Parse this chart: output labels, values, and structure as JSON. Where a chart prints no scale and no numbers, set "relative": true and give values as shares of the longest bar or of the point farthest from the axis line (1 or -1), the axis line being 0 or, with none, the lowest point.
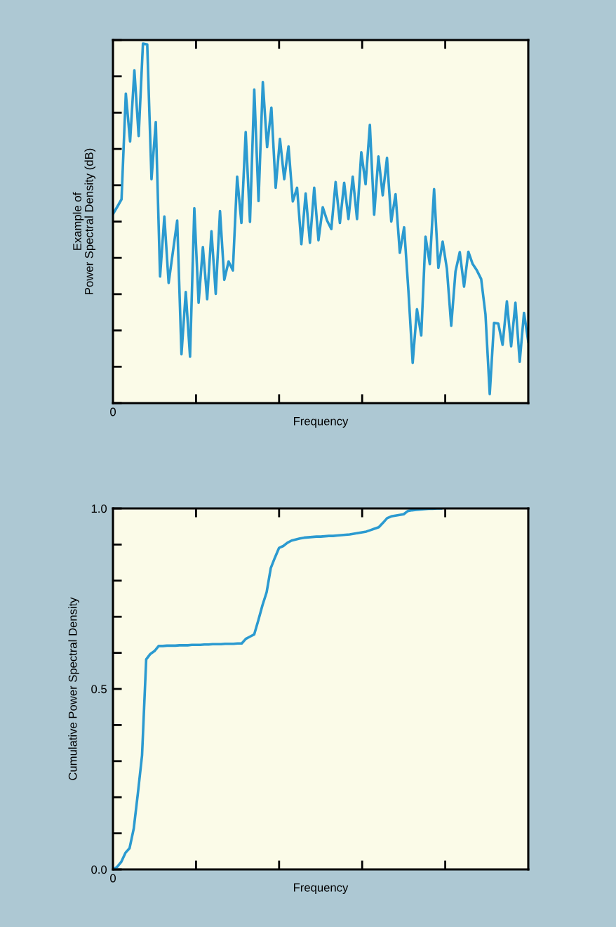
{
  "chart_data": [
    {
      "type": "line",
      "relative": true,
      "xlabel": "Frequency",
      "ylabel": "Example of\nPower Spectral Density (dB)",
      "annotations": [
        "0"
      ],
      "grid": false,
      "legend": false,
      "categories": [
        null,
        null,
        null,
        null,
        null,
        null,
        null,
        null,
        null,
        null,
        null,
        null,
        null,
        null,
        null,
        null,
        null,
        null,
        null,
        null,
        null,
        null,
        null,
        null,
        null,
        null,
        null,
        null,
        null,
        null,
        null,
        null,
        null,
        null,
        null,
        null,
        null,
        null,
        null,
        null,
        null,
        null,
        null,
        null,
        null,
        null,
        null,
        null,
        null,
        null,
        null,
        null,
        null,
        null,
        null,
        null,
        null,
        null,
        null,
        null,
        null,
        null,
        null,
        null,
        null,
        null,
        null,
        null,
        null,
        null,
        null,
        null,
        null,
        null,
        null,
        null,
        null,
        null,
        null,
        null,
        null,
        null,
        null,
        null,
        null,
        null,
        null,
        null,
        null,
        null,
        null,
        null,
        null,
        null,
        null,
        null,
        null,
        null
      ],
      "series": [
        {
          "color": "#2b9ad0",
          "values": [
            0.526,
            0.546,
            0.567,
            0.861,
            0.728,
            0.926,
            0.743,
            1.0,
            0.998,
            0.623,
            0.782,
            0.352,
            0.519,
            0.334,
            0.421,
            0.508,
            0.136,
            0.309,
            0.129,
            0.542,
            0.279,
            0.434,
            0.289,
            0.478,
            0.304,
            0.534,
            0.343,
            0.394,
            0.369,
            0.63,
            0.501,
            0.754,
            0.504,
            0.872,
            0.562,
            0.893,
            0.712,
            0.822,
            0.599,
            0.735,
            0.623,
            0.714,
            0.561,
            0.599,
            0.442,
            0.583,
            0.446,
            0.599,
            0.453,
            0.545,
            0.508,
            0.484,
            0.615,
            0.501,
            0.613,
            0.512,
            0.63,
            0.512,
            0.698,
            0.609,
            0.774,
            0.524,
            0.686,
            0.578,
            0.682,
            0.505,
            0.581,
            0.418,
            0.489,
            0.313,
            0.112,
            0.261,
            0.188,
            0.463,
            0.387,
            0.595,
            0.376,
            0.449,
            0.373,
            0.215,
            0.366,
            0.42,
            0.324,
            0.421,
            0.387,
            0.369,
            0.345,
            0.247,
            0.025,
            0.223,
            0.221,
            0.162,
            0.283,
            0.158,
            0.279,
            0.115,
            0.251,
            0.171
          ]
        }
      ]
    },
    {
      "type": "line",
      "xlabel": "Frequency",
      "ylabel": "Cumulative Power Spectral Density",
      "annotations": [
        "0"
      ],
      "ylim": [
        0,
        1
      ],
      "yticks": [
        {
          "value": 0,
          "label": "0.0"
        },
        {
          "value": 0.1,
          "label": null
        },
        {
          "value": 0.2,
          "label": null
        },
        {
          "value": 0.3,
          "label": null
        },
        {
          "value": 0.4,
          "label": null
        },
        {
          "value": 0.5,
          "label": "0.5"
        },
        {
          "value": 0.6,
          "label": null
        },
        {
          "value": 0.7,
          "label": null
        },
        {
          "value": 0.8,
          "label": null
        },
        {
          "value": 0.9,
          "label": null
        },
        {
          "value": 1,
          "label": "1.0"
        }
      ],
      "grid": false,
      "legend": false,
      "categories": [
        null,
        null,
        null,
        null,
        null,
        null,
        null,
        null,
        null,
        null,
        null,
        null,
        null,
        null,
        null,
        null,
        null,
        null,
        null,
        null,
        null,
        null,
        null,
        null,
        null,
        null,
        null,
        null,
        null,
        null,
        null,
        null,
        null,
        null,
        null,
        null,
        null,
        null,
        null,
        null,
        null,
        null,
        null,
        null,
        null,
        null,
        null,
        null,
        null,
        null,
        null,
        null,
        null,
        null,
        null,
        null,
        null,
        null,
        null,
        null,
        null,
        null,
        null,
        null,
        null,
        null,
        null,
        null,
        null,
        null,
        null,
        null,
        null,
        null,
        null,
        null,
        null,
        null,
        null,
        null,
        null,
        null,
        null,
        null,
        null,
        null,
        null,
        null,
        null,
        null,
        null,
        null,
        null,
        null,
        null,
        null,
        null,
        null,
        null,
        null,
        null
      ],
      "series": [
        {
          "color": "#2b9ad0",
          "values": [
            0,
            0.007,
            0.021,
            0.046,
            0.059,
            0.113,
            0.211,
            0.316,
            0.582,
            0.597,
            0.605,
            0.619,
            0.619,
            0.62,
            0.62,
            0.62,
            0.621,
            0.621,
            0.621,
            0.622,
            0.622,
            0.622,
            0.623,
            0.623,
            0.624,
            0.624,
            0.624,
            0.625,
            0.625,
            0.625,
            0.626,
            0.626,
            0.639,
            0.645,
            0.651,
            0.69,
            0.732,
            0.768,
            0.835,
            0.864,
            0.891,
            0.896,
            0.905,
            0.911,
            0.914,
            0.917,
            0.919,
            0.92,
            0.921,
            0.922,
            0.922,
            0.923,
            0.924,
            0.924,
            0.925,
            0.926,
            0.927,
            0.928,
            0.93,
            0.932,
            0.934,
            0.936,
            0.94,
            0.944,
            0.948,
            0.96,
            0.973,
            0.978,
            0.98,
            0.982,
            0.984,
            0.993,
            0.995,
            0.996,
            0.997,
            0.998,
            0.999,
            0.999,
            1.0,
            1.0,
            null,
            null,
            null,
            null,
            null,
            null,
            null,
            null,
            null,
            null,
            null,
            null,
            null,
            null,
            null,
            null,
            null,
            null,
            null,
            null,
            null
          ]
        }
      ]
    }
  ]
}
